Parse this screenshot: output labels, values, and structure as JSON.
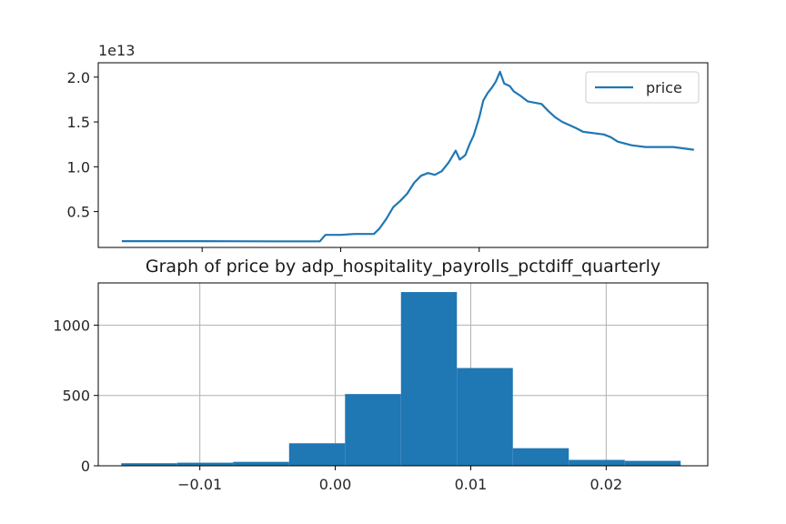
{
  "chart_data": [
    {
      "type": "line",
      "title": "",
      "xlabel": "",
      "ylabel": "",
      "y_multiplier_label": "1e13",
      "x_tick_labels": [],
      "y_ticks": [
        0.5,
        1.0,
        1.5,
        2.0
      ],
      "y_tick_labels": [
        "0.5",
        "1.0",
        "1.5",
        "2.0"
      ],
      "ylim": [
        0.1,
        2.16
      ],
      "xlim": [
        -0.0175,
        0.0265
      ],
      "x_gridlines_at": [
        -0.01,
        0.0,
        0.01
      ],
      "grid": false,
      "legend": {
        "location": "upper right",
        "entries": [
          "price"
        ]
      },
      "series": [
        {
          "name": "price",
          "color": "#1f77b4",
          "points": [
            [
              -0.0158,
              0.17
            ],
            [
              -0.01,
              0.17
            ],
            [
              -0.005,
              0.168
            ],
            [
              -0.0015,
              0.168
            ],
            [
              -0.0011,
              0.24
            ],
            [
              0.0,
              0.24
            ],
            [
              0.001,
              0.25
            ],
            [
              0.0024,
              0.25
            ],
            [
              0.0028,
              0.31
            ],
            [
              0.0033,
              0.42
            ],
            [
              0.0038,
              0.55
            ],
            [
              0.0043,
              0.62
            ],
            [
              0.0048,
              0.7
            ],
            [
              0.0053,
              0.82
            ],
            [
              0.0058,
              0.9
            ],
            [
              0.0063,
              0.93
            ],
            [
              0.0068,
              0.91
            ],
            [
              0.0073,
              0.95
            ],
            [
              0.0078,
              1.05
            ],
            [
              0.0083,
              1.18
            ],
            [
              0.0086,
              1.08
            ],
            [
              0.009,
              1.13
            ],
            [
              0.0093,
              1.25
            ],
            [
              0.0096,
              1.35
            ],
            [
              0.01,
              1.55
            ],
            [
              0.0103,
              1.74
            ],
            [
              0.0106,
              1.82
            ],
            [
              0.0109,
              1.88
            ],
            [
              0.0112,
              1.95
            ],
            [
              0.0115,
              2.06
            ],
            [
              0.0118,
              1.93
            ],
            [
              0.0122,
              1.9
            ],
            [
              0.0125,
              1.84
            ],
            [
              0.013,
              1.79
            ],
            [
              0.0135,
              1.73
            ],
            [
              0.0145,
              1.7
            ],
            [
              0.015,
              1.62
            ],
            [
              0.0155,
              1.55
            ],
            [
              0.016,
              1.5
            ],
            [
              0.017,
              1.43
            ],
            [
              0.0175,
              1.39
            ],
            [
              0.019,
              1.36
            ],
            [
              0.0195,
              1.33
            ],
            [
              0.02,
              1.28
            ],
            [
              0.021,
              1.24
            ],
            [
              0.022,
              1.22
            ],
            [
              0.024,
              1.22
            ],
            [
              0.025,
              1.2
            ],
            [
              0.0255,
              1.19
            ]
          ]
        }
      ]
    },
    {
      "type": "histogram",
      "title": "Graph of price by adp_hospitality_payrolls_pctdiff_quarterly",
      "xlabel": "",
      "ylabel": "",
      "x_ticks": [
        -0.01,
        0.0,
        0.01,
        0.02
      ],
      "x_tick_labels": [
        "−0.01",
        "0.00",
        "0.01",
        "0.02"
      ],
      "y_ticks": [
        0,
        500,
        1000
      ],
      "y_tick_labels": [
        "0",
        "500",
        "1000"
      ],
      "xlim": [
        -0.0175,
        0.0275
      ],
      "ylim": [
        0,
        1300
      ],
      "grid": true,
      "color": "#1f77b4",
      "bin_edges": [
        -0.0158,
        -0.01167,
        -0.00754,
        -0.00341,
        0.00072,
        0.00485,
        0.00898,
        0.01311,
        0.01724,
        0.02137,
        0.0255
      ],
      "counts": [
        18,
        22,
        28,
        160,
        510,
        1235,
        695,
        125,
        42,
        35
      ]
    }
  ]
}
